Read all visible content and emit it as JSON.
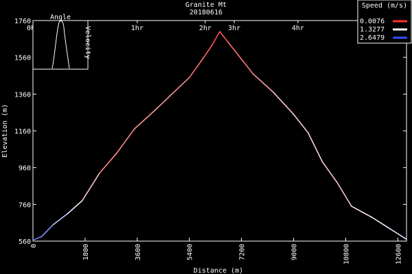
{
  "chart_data": {
    "type": "line",
    "title": "Granite Mt",
    "subtitle": "20180616",
    "xlabel": "Distance (m)",
    "ylabel": "Elevation (m)",
    "xlim": [
      0,
      12900
    ],
    "ylim": [
      560,
      1760
    ],
    "x_ticks": [
      0,
      1800,
      3600,
      5400,
      7200,
      9000,
      10800,
      12600
    ],
    "y_ticks": [
      560,
      760,
      960,
      1160,
      1360,
      1560,
      1760
    ],
    "time_ticks": [
      {
        "label": "0hr",
        "x": 0
      },
      {
        "label": "1hr",
        "x": 3600
      },
      {
        "label": "2hr",
        "x": 5950
      },
      {
        "label": "3hr",
        "x": 6950
      },
      {
        "label": "4hr",
        "x": 9150
      }
    ],
    "legend": {
      "title": "Speed (m/s)",
      "placement": "top-right",
      "entries": [
        {
          "label": "0.0076",
          "color": "#ff3333"
        },
        {
          "label": "1.3277",
          "color": "#ffffff"
        },
        {
          "label": "2.6479",
          "color": "#3355ff"
        }
      ]
    },
    "profile": [
      {
        "x": 0,
        "y": 565,
        "speed": 2.3
      },
      {
        "x": 300,
        "y": 585,
        "speed": 2.4
      },
      {
        "x": 700,
        "y": 650,
        "speed": 1.9
      },
      {
        "x": 1200,
        "y": 710,
        "speed": 1.6
      },
      {
        "x": 1700,
        "y": 780,
        "speed": 1.3
      },
      {
        "x": 2300,
        "y": 930,
        "speed": 0.6
      },
      {
        "x": 2900,
        "y": 1040,
        "speed": 0.5
      },
      {
        "x": 3500,
        "y": 1170,
        "speed": 0.6
      },
      {
        "x": 4200,
        "y": 1270,
        "speed": 0.7
      },
      {
        "x": 4800,
        "y": 1360,
        "speed": 0.6
      },
      {
        "x": 5400,
        "y": 1450,
        "speed": 0.5
      },
      {
        "x": 5900,
        "y": 1560,
        "speed": 0.3
      },
      {
        "x": 6200,
        "y": 1630,
        "speed": 0.2
      },
      {
        "x": 6450,
        "y": 1700,
        "speed": 0.1
      },
      {
        "x": 6750,
        "y": 1640,
        "speed": 0.3
      },
      {
        "x": 7100,
        "y": 1570,
        "speed": 0.4
      },
      {
        "x": 7600,
        "y": 1470,
        "speed": 0.5
      },
      {
        "x": 8300,
        "y": 1370,
        "speed": 0.9
      },
      {
        "x": 9000,
        "y": 1250,
        "speed": 1.0
      },
      {
        "x": 9500,
        "y": 1150,
        "speed": 1.1
      },
      {
        "x": 10000,
        "y": 990,
        "speed": 1.0
      },
      {
        "x": 10500,
        "y": 880,
        "speed": 0.9
      },
      {
        "x": 11000,
        "y": 750,
        "speed": 1.0
      },
      {
        "x": 11700,
        "y": 690,
        "speed": 1.3
      },
      {
        "x": 12300,
        "y": 630,
        "speed": 1.5
      },
      {
        "x": 12900,
        "y": 570,
        "speed": 1.6
      }
    ],
    "inset": {
      "title": "Angle",
      "ylabel": "Velocity"
    }
  }
}
